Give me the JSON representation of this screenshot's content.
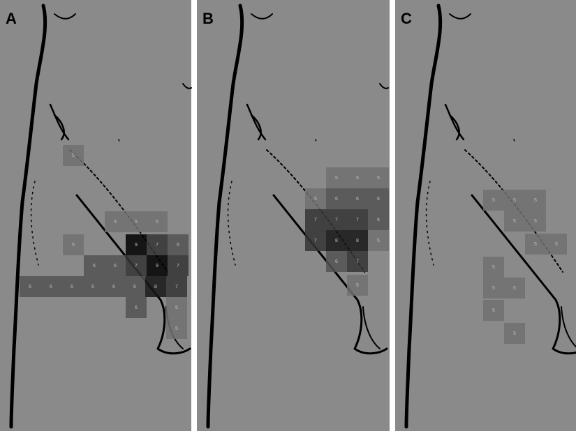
{
  "panels": [
    {
      "label": "A",
      "cells": [
        5,
        5,
        5,
        5,
        5,
        9,
        7,
        6,
        6,
        6,
        7,
        9,
        7,
        6,
        6,
        6,
        6,
        6,
        6,
        8,
        7,
        6,
        5,
        5
      ]
    },
    {
      "label": "B",
      "cells": [
        5,
        5,
        5,
        5,
        6,
        6,
        6,
        7,
        7,
        7,
        6,
        7,
        8,
        8,
        5,
        6,
        7,
        5
      ]
    },
    {
      "label": "C",
      "cells": [
        5,
        5,
        5,
        5,
        5,
        5,
        5,
        5,
        5,
        5,
        5,
        5
      ]
    }
  ]
}
